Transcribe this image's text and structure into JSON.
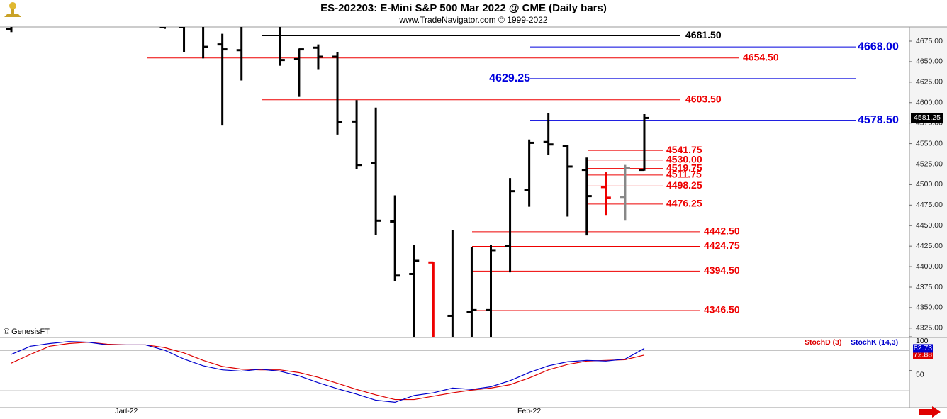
{
  "chart_data": {
    "type": "ohlc",
    "title": "ES-202203:  E-Mini S&P 500 Mar 2022 @ CME  (Daily bars)",
    "subtitle": "www.TradeNavigator.com © 1999-2022",
    "copyright": "© GenesisFT",
    "categories": [
      null,
      null,
      null,
      null,
      null,
      null,
      "Jan-22",
      null,
      null,
      null,
      null,
      null,
      null,
      null,
      null,
      null,
      null,
      null,
      null,
      null,
      null,
      null,
      null,
      null,
      null,
      null,
      null,
      "Feb-22",
      null,
      null,
      null,
      null,
      null,
      null
    ],
    "bars": {
      "open": [
        4690,
        null,
        null,
        null,
        null,
        null,
        null,
        null,
        4692,
        4692,
        null,
        4671,
        4664,
        null,
        null,
        4653,
        4667,
        4656,
        4577,
        4526,
        4455,
        4391,
        4405,
        4340,
        4345,
        4347,
        4425,
        4493,
        4552,
        4547,
        4518,
        4497,
        4485,
        4518
      ],
      "high": [
        4700,
        null,
        null,
        null,
        null,
        null,
        null,
        null,
        4700,
        4700,
        4700,
        4684,
        4700,
        null,
        4700,
        4666,
        4671,
        4662,
        4603,
        4594,
        4487,
        4426,
        4406,
        4445,
        4424,
        4426,
        4508,
        4555,
        4587,
        4548,
        4533,
        4515,
        4524,
        4586
      ],
      "low": [
        4686,
        null,
        null,
        null,
        null,
        null,
        null,
        null,
        4690,
        4662,
        4654,
        4572,
        4627,
        null,
        4645,
        4607,
        4640,
        4561,
        4519,
        4439,
        4382,
        4300,
        4300,
        4300,
        4300,
        4300,
        4393,
        4473,
        4536,
        4461,
        4438,
        4463,
        4456,
        4517
      ],
      "close": [
        null,
        null,
        null,
        null,
        null,
        null,
        null,
        null,
        null,
        null,
        4668,
        4665,
        null,
        null,
        4652,
        4665,
        4656,
        4576,
        4524,
        4456,
        4389,
        4407,
        null,
        null,
        4347,
        4420,
        4492,
        4551,
        4549,
        4522,
        4486,
        4484,
        4520,
        4581.25
      ],
      "colors": [
        "#000000",
        null,
        null,
        null,
        null,
        null,
        null,
        null,
        "#000000",
        "#000000",
        "#000000",
        "#000000",
        "#000000",
        null,
        "#000000",
        "#000000",
        "#000000",
        "#000000",
        "#000000",
        "#000000",
        "#000000",
        "#000000",
        "#ee0000",
        "#000000",
        "#000000",
        "#000000",
        "#000000",
        "#000000",
        "#000000",
        "#000000",
        "#000000",
        "#ee0000",
        "#888888",
        "#000000"
      ]
    },
    "ylim": [
      4313.6,
      4692.3
    ],
    "yticks": [
      {
        "value": 4325,
        "label": "4325.00"
      },
      {
        "value": 4350,
        "label": "4350.00"
      },
      {
        "value": 4375,
        "label": "4375.00"
      },
      {
        "value": 4400,
        "label": "4400.00"
      },
      {
        "value": 4425,
        "label": "4425.00"
      },
      {
        "value": 4450,
        "label": "4450.00"
      },
      {
        "value": 4475,
        "label": "4475.00"
      },
      {
        "value": 4500,
        "label": "4500.00"
      },
      {
        "value": 4525,
        "label": "4525.00"
      },
      {
        "value": 4550,
        "label": "4550.00"
      },
      {
        "value": 4575,
        "label": "4575.00"
      },
      {
        "value": 4600,
        "label": "4600.00"
      },
      {
        "value": 4625,
        "label": "4625.00"
      },
      {
        "value": 4650,
        "label": "4650.00"
      },
      {
        "value": 4675,
        "label": "4675.00"
      }
    ],
    "last_price": {
      "value": 4581.25,
      "label": "4581.25"
    },
    "levels": {
      "values": [
        4681.5,
        4668,
        4654.5,
        4629.25,
        4603.5,
        4578.5,
        4541.75,
        4530,
        4519.75,
        4511.75,
        4498.25,
        4476.25,
        4442.5,
        4424.75,
        4394.5,
        4346.5
      ],
      "value_labels": [
        "4681.50",
        "4668.00",
        "4654.50",
        "4629.25",
        "4603.50",
        "4578.50",
        "4541.75",
        "4530.00",
        "4519.75",
        "4511.75",
        "4498.25",
        "4476.25",
        "4442.50",
        "4424.75",
        "4394.50",
        "4346.50"
      ],
      "colors": [
        "#000000",
        "#0000dd",
        "#ee0000",
        "#0000dd",
        "#ee0000",
        "#0000dd",
        "#ee0000",
        "#ee0000",
        "#ee0000",
        "#ee0000",
        "#ee0000",
        "#ee0000",
        "#ee0000",
        "#ee0000",
        "#ee0000",
        "#ee0000"
      ]
    },
    "indicator": {
      "type": "line",
      "ylim": [
        -5,
        100
      ],
      "yticks": [
        100,
        50
      ],
      "reference_lines": [
        80,
        20
      ],
      "series": [
        {
          "name": "StochD (3)",
          "color": "#dd0000",
          "values": [
            61,
            74,
            86,
            90,
            92,
            89,
            88,
            88,
            84,
            76,
            65,
            56,
            52,
            51,
            51,
            47,
            40,
            31,
            22,
            14,
            7,
            7,
            12,
            17,
            21,
            24,
            29,
            39,
            51,
            59,
            64,
            65,
            66,
            72.88
          ]
        },
        {
          "name": "StochK (14,3)",
          "color": "#0000cc",
          "values": [
            74,
            86,
            90,
            93,
            92,
            88,
            88,
            88,
            80,
            67,
            57,
            51,
            49,
            52,
            49,
            42,
            32,
            23,
            15,
            6,
            3,
            13,
            17,
            24,
            22,
            26,
            35,
            47,
            57,
            63,
            65,
            64,
            67,
            82.73
          ]
        }
      ]
    }
  }
}
